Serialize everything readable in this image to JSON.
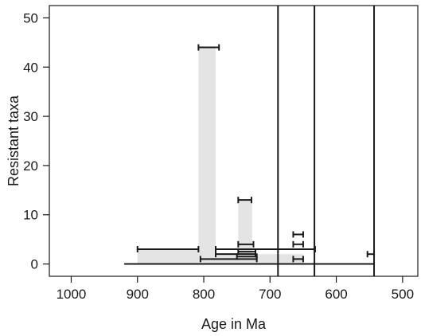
{
  "chart_data": {
    "type": "range-bar",
    "xlabel": "Age in Ma",
    "ylabel": "Resistant taxa",
    "x_reversed": true,
    "xlim": [
      1033,
      477
    ],
    "ylim": [
      -2.5,
      52.5
    ],
    "x_ticks": [
      1000,
      900,
      800,
      700,
      600,
      500
    ],
    "y_ticks": [
      0,
      10,
      20,
      30,
      40,
      50
    ],
    "x_tick_labels": [
      "1000",
      "900",
      "800",
      "700",
      "600",
      "500"
    ],
    "y_tick_labels": [
      "0",
      "10",
      "20",
      "30",
      "40",
      "50"
    ],
    "grid": false,
    "frame": true,
    "shaded_bars": [
      {
        "x_start": 808,
        "x_end": 782,
        "value": 44
      },
      {
        "x_start": 748,
        "x_end": 727,
        "value": 13
      },
      {
        "x_start": 900,
        "x_end": 808,
        "value": 3
      },
      {
        "x_start": 808,
        "x_end": 655,
        "value": 1.5
      },
      {
        "x_start": 782,
        "x_end": 650,
        "value": 2
      }
    ],
    "range_markers": [
      {
        "x_start": 808,
        "x_end": 777,
        "value": 44
      },
      {
        "x_start": 748,
        "x_end": 728,
        "value": 13
      },
      {
        "x_start": 748,
        "x_end": 725,
        "value": 4
      },
      {
        "x_start": 665,
        "x_end": 650,
        "value": 6
      },
      {
        "x_start": 665,
        "x_end": 650,
        "value": 4
      },
      {
        "x_start": 900,
        "x_end": 808,
        "value": 3
      },
      {
        "x_start": 782,
        "x_end": 632,
        "value": 3
      },
      {
        "x_start": 748,
        "x_end": 722,
        "value": 2.5
      },
      {
        "x_start": 782,
        "x_end": 722,
        "value": 2
      },
      {
        "x_start": 750,
        "x_end": 720,
        "value": 1.5
      },
      {
        "x_start": 805,
        "x_end": 720,
        "value": 1
      },
      {
        "x_start": 665,
        "x_end": 650,
        "value": 1
      },
      {
        "x_start": 553,
        "x_end": 543,
        "value": 2
      }
    ],
    "baseline": {
      "x_start": 920,
      "x_end": 543,
      "value": 0
    },
    "vertical_lines": [
      688,
      633,
      543
    ]
  }
}
